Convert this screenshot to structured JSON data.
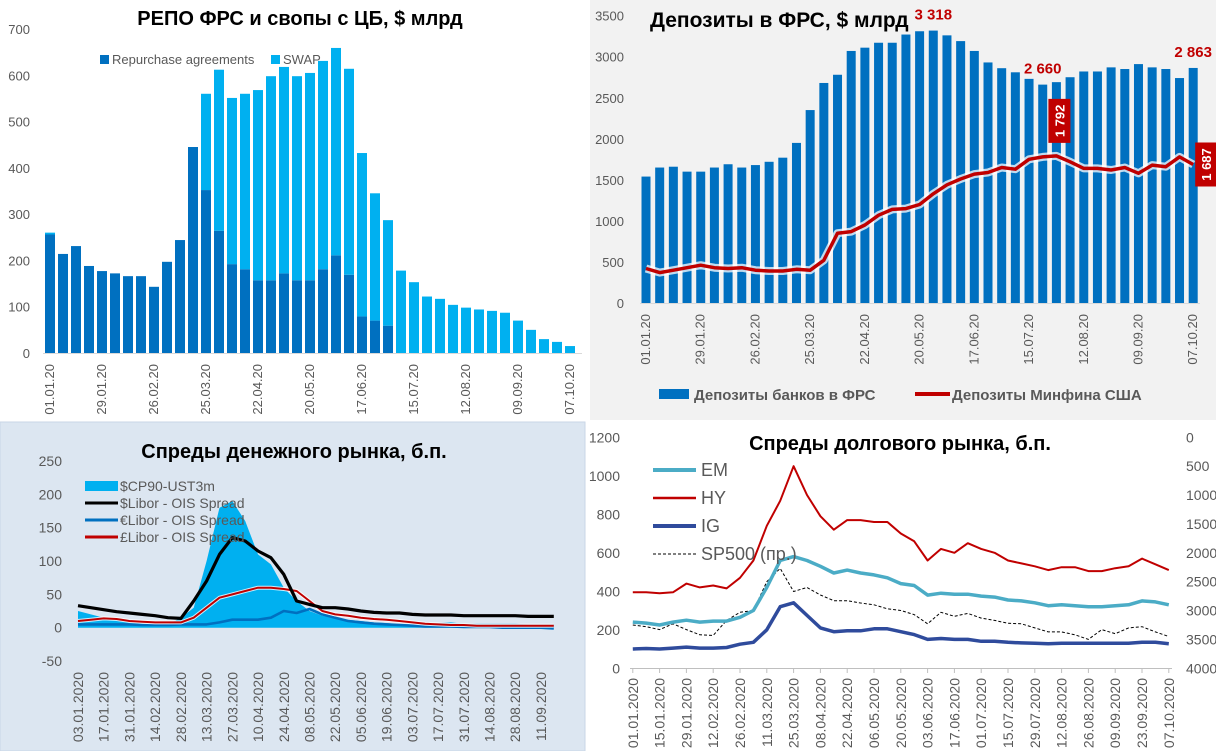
{
  "chart_data": [
    {
      "type": "bar",
      "stacked": true,
      "title": "РЕПО ФРС и свопы с ЦБ, $ млрд",
      "categories": [
        "01.01.20",
        "08.01.20",
        "15.01.20",
        "22.01.20",
        "29.01.20",
        "05.02.20",
        "12.02.20",
        "19.02.20",
        "26.02.20",
        "04.03.20",
        "11.03.20",
        "18.03.20",
        "25.03.20",
        "01.04.20",
        "08.04.20",
        "15.04.20",
        "22.04.20",
        "29.04.20",
        "06.05.20",
        "13.05.20",
        "20.05.20",
        "27.05.20",
        "03.06.20",
        "10.06.20",
        "17.06.20",
        "24.06.20",
        "01.07.20",
        "08.07.20",
        "15.07.20",
        "22.07.20",
        "29.07.20",
        "05.08.20",
        "12.08.20",
        "19.08.20",
        "26.08.20",
        "02.09.20",
        "09.09.20",
        "16.09.20",
        "23.09.20",
        "30.09.20",
        "07.10.20"
      ],
      "x_tick_labels": [
        "01.01.20",
        "29.01.20",
        "26.02.20",
        "25.03.20",
        "22.04.20",
        "20.05.20",
        "17.06.20",
        "15.07.20",
        "12.08.20",
        "09.09.20",
        "07.10.20"
      ],
      "ylim": [
        0,
        700
      ],
      "yticks": [
        0,
        100,
        200,
        300,
        400,
        500,
        600,
        700
      ],
      "legend": "top",
      "series": [
        {
          "name": "Repurchase agreements",
          "color": "#0070c0",
          "values": [
            256,
            214,
            231,
            188,
            177,
            172,
            166,
            166,
            143,
            197,
            244,
            445,
            352,
            264,
            192,
            181,
            157,
            157,
            172,
            157,
            157,
            181,
            211,
            169,
            79,
            70,
            59,
            0,
            0,
            0,
            0,
            0,
            0,
            0,
            0,
            0,
            0,
            0,
            0,
            0,
            0
          ]
        },
        {
          "name": "SWAP",
          "color": "#00b0f0",
          "values": [
            4,
            0,
            0,
            0,
            0,
            0,
            0,
            0,
            0,
            0,
            0,
            0,
            208,
            348,
            359,
            379,
            411,
            441,
            446,
            441,
            448,
            450,
            448,
            445,
            353,
            275,
            228,
            178,
            153,
            122,
            117,
            104,
            98,
            94,
            91,
            87,
            70,
            50,
            30,
            24,
            15
          ]
        }
      ]
    },
    {
      "type": "bar",
      "title": "Депозиты в ФРС, $ млрд",
      "categories": [
        "01.01.20",
        "08.01.20",
        "15.01.20",
        "22.01.20",
        "29.01.20",
        "05.02.20",
        "12.02.20",
        "19.02.20",
        "26.02.20",
        "04.03.20",
        "11.03.20",
        "18.03.20",
        "25.03.20",
        "01.04.20",
        "08.04.20",
        "15.04.20",
        "22.04.20",
        "29.04.20",
        "06.05.20",
        "13.05.20",
        "20.05.20",
        "27.05.20",
        "03.06.20",
        "10.06.20",
        "17.06.20",
        "24.06.20",
        "01.07.20",
        "08.07.20",
        "15.07.20",
        "22.07.20",
        "29.07.20",
        "05.08.20",
        "12.08.20",
        "19.08.20",
        "26.08.20",
        "02.09.20",
        "09.09.20",
        "16.09.20",
        "23.09.20",
        "30.09.20",
        "07.10.20"
      ],
      "x_tick_labels": [
        "01.01.20",
        "29.01.20",
        "26.02.20",
        "25.03.20",
        "22.04.20",
        "20.05.20",
        "17.06.20",
        "15.07.20",
        "12.08.20",
        "09.09.20",
        "07.10.20"
      ],
      "ylim": [
        0,
        3500
      ],
      "yticks": [
        0,
        500,
        1000,
        1500,
        2000,
        2500,
        3000,
        3500
      ],
      "legend": "bottom",
      "series": [
        {
          "name": "Депозиты банков в ФРС",
          "kind": "bar",
          "color": "#0070c0",
          "values": [
            1540,
            1650,
            1660,
            1600,
            1600,
            1650,
            1690,
            1650,
            1680,
            1720,
            1770,
            1950,
            2350,
            2680,
            2780,
            3070,
            3110,
            3170,
            3170,
            3270,
            3310,
            3318,
            3260,
            3190,
            3070,
            2930,
            2860,
            2810,
            2730,
            2660,
            2690,
            2750,
            2820,
            2820,
            2870,
            2850,
            2910,
            2870,
            2850,
            2740,
            2863
          ]
        },
        {
          "name": "Депозиты Минфина США",
          "kind": "line",
          "color": "#c00000",
          "values": [
            420,
            370,
            400,
            430,
            460,
            430,
            420,
            430,
            400,
            390,
            390,
            410,
            400,
            520,
            850,
            870,
            950,
            1070,
            1140,
            1150,
            1200,
            1330,
            1440,
            1510,
            1570,
            1590,
            1650,
            1630,
            1750,
            1780,
            1792,
            1720,
            1640,
            1640,
            1620,
            1650,
            1580,
            1680,
            1660,
            1780,
            1687
          ]
        }
      ],
      "annotations": [
        {
          "text": "3 318",
          "series": 0,
          "index": 21,
          "style": "label"
        },
        {
          "text": "2 660",
          "series": 0,
          "index": 29,
          "style": "label"
        },
        {
          "text": "2 863",
          "series": 0,
          "index": 40,
          "style": "label"
        },
        {
          "text": "1 792",
          "series": 1,
          "index": 30,
          "style": "box"
        },
        {
          "text": "1 687",
          "series": 1,
          "index": 40,
          "style": "box"
        }
      ]
    },
    {
      "type": "line",
      "title": "Спреды денежного рынка, б.п.",
      "categories": [
        "03.01.2020",
        "10.01.2020",
        "17.01.2020",
        "24.01.2020",
        "31.01.2020",
        "07.02.2020",
        "14.02.2020",
        "21.02.2020",
        "28.02.2020",
        "06.03.2020",
        "13.03.2020",
        "20.03.2020",
        "27.03.2020",
        "03.04.2020",
        "10.04.2020",
        "17.04.2020",
        "24.04.2020",
        "01.05.2020",
        "08.05.2020",
        "15.05.2020",
        "22.05.2020",
        "29.05.2020",
        "05.06.2020",
        "12.06.2020",
        "19.06.2020",
        "26.06.2020",
        "03.07.2020",
        "10.07.2020",
        "17.07.2020",
        "24.07.2020",
        "31.07.2020",
        "07.08.2020",
        "14.08.2020",
        "21.08.2020",
        "28.08.2020",
        "04.09.2020",
        "11.09.2020",
        "18.09.2020"
      ],
      "x_tick_labels": [
        "03.01.2020",
        "17.01.2020",
        "31.01.2020",
        "14.02.2020",
        "28.02.2020",
        "13.03.2020",
        "27.03.2020",
        "10.04.2020",
        "24.04.2020",
        "08.05.2020",
        "22.05.2020",
        "05.06.2020",
        "19.06.2020",
        "03.07.2020",
        "17.07.2020",
        "31.07.2020",
        "14.08.2020",
        "28.08.2020",
        "11.09.2020"
      ],
      "ylim": [
        -50,
        250
      ],
      "yticks": [
        -50,
        0,
        50,
        100,
        150,
        200,
        250
      ],
      "legend": "top-left",
      "series": [
        {
          "name": "$CP90-UST3m",
          "kind": "area",
          "color": "#00b0f0",
          "values": [
            25,
            20,
            15,
            12,
            8,
            6,
            5,
            5,
            15,
            30,
            100,
            180,
            190,
            160,
            110,
            95,
            60,
            40,
            25,
            18,
            15,
            12,
            10,
            8,
            7,
            5,
            5,
            5,
            7,
            8,
            6,
            6,
            6,
            6,
            6,
            5,
            5,
            5
          ]
        },
        {
          "name": "$Libor - OIS Spread",
          "kind": "line",
          "color": "#000000",
          "values": [
            33,
            30,
            27,
            24,
            22,
            20,
            18,
            15,
            14,
            40,
            70,
            110,
            135,
            130,
            115,
            105,
            80,
            40,
            35,
            30,
            30,
            28,
            25,
            23,
            22,
            22,
            20,
            19,
            19,
            19,
            18,
            18,
            18,
            18,
            18,
            17,
            17,
            17
          ]
        },
        {
          "name": "€Libor - OIS Spread",
          "kind": "line",
          "color": "#0070c0",
          "values": [
            5,
            5,
            5,
            5,
            5,
            4,
            4,
            4,
            5,
            5,
            5,
            8,
            12,
            12,
            12,
            15,
            25,
            22,
            28,
            20,
            15,
            10,
            8,
            6,
            5,
            4,
            3,
            2,
            2,
            2,
            1,
            1,
            1,
            0,
            0,
            0,
            0,
            -1
          ]
        },
        {
          "name": "£Libor - OIS Spread",
          "kind": "line",
          "color": "#c00000",
          "values": [
            10,
            12,
            14,
            13,
            10,
            9,
            8,
            8,
            8,
            15,
            30,
            45,
            50,
            55,
            60,
            60,
            58,
            55,
            40,
            25,
            20,
            18,
            15,
            13,
            12,
            10,
            8,
            6,
            5,
            4,
            4,
            3,
            3,
            3,
            3,
            3,
            3,
            3
          ]
        }
      ]
    },
    {
      "type": "line",
      "title": "Спреды долгового рынка, б.п.",
      "categories": [
        "01.01.2020",
        "08.01.2020",
        "15.01.2020",
        "22.01.2020",
        "29.01.2020",
        "05.02.2020",
        "12.02.2020",
        "19.02.2020",
        "26.02.2020",
        "04.03.2020",
        "11.03.2020",
        "18.03.2020",
        "25.03.2020",
        "01.04.2020",
        "08.04.2020",
        "15.04.2020",
        "22.04.2020",
        "29.04.2020",
        "06.05.2020",
        "13.05.2020",
        "20.05.2020",
        "27.05.2020",
        "03.06.2020",
        "10.06.2020",
        "17.06.2020",
        "24.06.2020",
        "01.07.2020",
        "08.07.2020",
        "15.07.2020",
        "22.07.2020",
        "29.07.2020",
        "05.08.2020",
        "12.08.2020",
        "19.08.2020",
        "26.08.2020",
        "02.09.2020",
        "09.09.2020",
        "16.09.2020",
        "23.09.2020",
        "30.09.2020",
        "07.10.2020"
      ],
      "x_tick_labels": [
        "01.01.2020",
        "15.01.2020",
        "29.01.2020",
        "12.02.2020",
        "26.02.2020",
        "11.03.2020",
        "25.03.2020",
        "08.04.2020",
        "22.04.2020",
        "06.05.2020",
        "20.05.2020",
        "03.06.2020",
        "17.06.2020",
        "01.07.2020",
        "15.07.2020",
        "29.07.2020",
        "12.08.2020",
        "26.08.2020",
        "09.09.2020",
        "23.09.2020",
        "07.10.2020"
      ],
      "ylim": [
        0,
        1200
      ],
      "yticks": [
        0,
        200,
        400,
        600,
        800,
        1000,
        1200
      ],
      "y2lim": [
        4000,
        0
      ],
      "y2_inverted": true,
      "y2ticks": [
        0,
        500,
        1000,
        1500,
        2000,
        2500,
        3000,
        3500,
        4000
      ],
      "legend": "top-left",
      "series": [
        {
          "name": "EM",
          "axis": "left",
          "color": "#4bacc6",
          "values": [
            240,
            235,
            225,
            240,
            250,
            240,
            245,
            245,
            265,
            300,
            420,
            560,
            580,
            560,
            530,
            495,
            510,
            495,
            485,
            470,
            440,
            430,
            380,
            390,
            385,
            385,
            375,
            370,
            355,
            350,
            340,
            325,
            330,
            325,
            320,
            320,
            325,
            330,
            350,
            345,
            330
          ]
        },
        {
          "name": "HY",
          "axis": "left",
          "color": "#c00000",
          "values": [
            395,
            395,
            390,
            395,
            440,
            420,
            430,
            415,
            470,
            560,
            740,
            870,
            1050,
            900,
            790,
            720,
            770,
            770,
            760,
            760,
            700,
            660,
            560,
            620,
            600,
            650,
            620,
            600,
            560,
            545,
            530,
            510,
            525,
            525,
            505,
            505,
            520,
            530,
            570,
            540,
            510
          ]
        },
        {
          "name": "IG",
          "axis": "left",
          "color": "#2f4b9c",
          "values": [
            100,
            103,
            100,
            105,
            110,
            105,
            105,
            108,
            125,
            135,
            200,
            320,
            340,
            275,
            210,
            190,
            195,
            195,
            205,
            205,
            190,
            175,
            150,
            155,
            150,
            150,
            140,
            140,
            135,
            132,
            130,
            128,
            130,
            130,
            130,
            130,
            130,
            130,
            135,
            135,
            128
          ]
        },
        {
          "name": "SP500 (пр.)",
          "axis": "right",
          "color": "#000000",
          "dashed": true,
          "values": [
            3250,
            3280,
            3330,
            3230,
            3330,
            3420,
            3430,
            3170,
            3030,
            3000,
            2500,
            2270,
            2670,
            2600,
            2730,
            2830,
            2830,
            2870,
            2900,
            2970,
            3000,
            3070,
            3230,
            3030,
            3100,
            3050,
            3130,
            3170,
            3220,
            3230,
            3300,
            3370,
            3370,
            3420,
            3500,
            3330,
            3400,
            3300,
            3280,
            3370,
            3450
          ]
        }
      ]
    }
  ]
}
